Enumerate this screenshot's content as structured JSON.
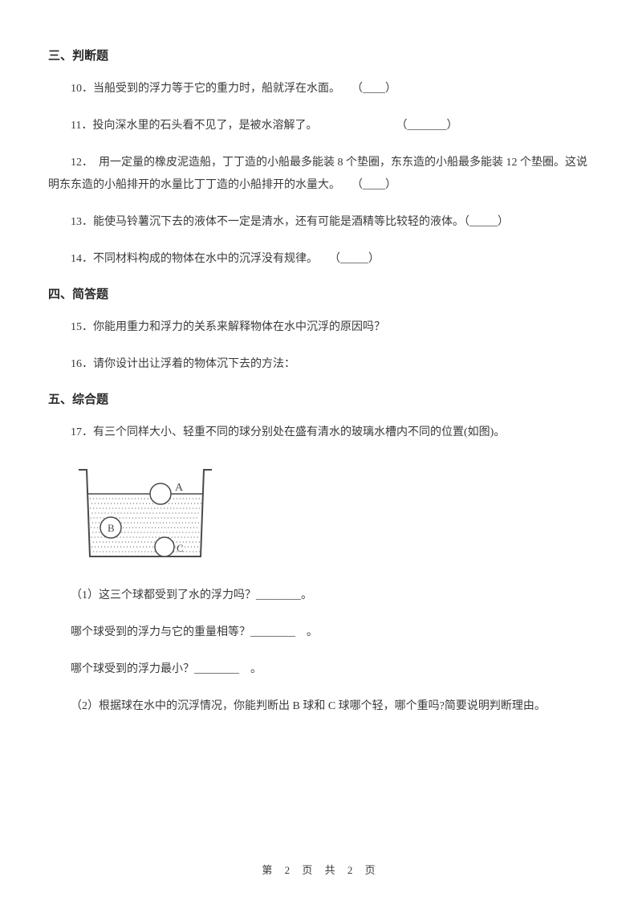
{
  "sections": {
    "s3": {
      "title": "三、判断题"
    },
    "s4": {
      "title": "四、简答题"
    },
    "s5": {
      "title": "五、综合题"
    }
  },
  "questions": {
    "q10": "10．当船受到的浮力等于它的重力时，船就浮在水面。　　（____）",
    "q11": "11．投向深水里的石头看不见了，是被水溶解了。　　　　　　　　（_______）",
    "q12": "12．　用一定量的橡皮泥造船，丁丁造的小船最多能装 8 个垫圈，东东造的小船最多能装 12 个垫圈。这说明东东造的小船排开的水量比丁丁造的小船排开的水量大。　　（____）",
    "q13": "13．能使马铃薯沉下去的液体不一定是清水，还有可能是酒精等比较轻的液体。（_____）",
    "q14": "14．不同材料构成的物体在水中的沉浮没有规律。　　（_____）",
    "q15": "15．你能用重力和浮力的关系来解释物体在水中沉浮的原因吗？",
    "q16": "16．请你设计出让浮着的物体沉下去的方法：",
    "q17": "17．有三个同样大小、轻重不同的球分别处在盛有清水的玻璃水槽内不同的位置(如图)。",
    "q17_1": "（1）这三个球都受到了水的浮力吗？________。",
    "q17_1b": "哪个球受到的浮力与它的重量相等？________　。",
    "q17_1c": "哪个球受到的浮力最小？________　。",
    "q17_2": "（2）根据球在水中的沉浮情况，你能判断出 B 球和 C 球哪个轻，哪个重吗?简要说明判断理由。"
  },
  "diagram": {
    "labels": {
      "a": "A",
      "b": "B",
      "c": "C"
    },
    "colors": {
      "stroke": "#4a4a4a",
      "fill": "#f5f5f5",
      "water_fill": "none",
      "dot": "#666666"
    },
    "dimensions": {
      "width": 185,
      "height": 130
    }
  },
  "footer": "第 2 页 共 2 页"
}
